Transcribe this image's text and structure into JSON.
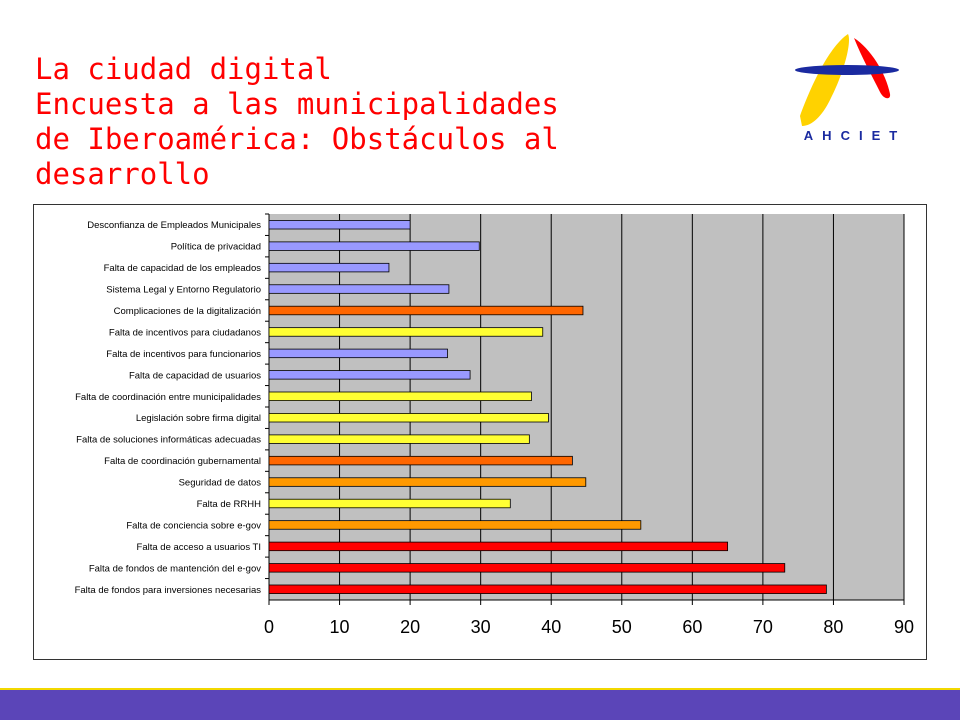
{
  "slide": {
    "title_lines": [
      "La ciudad digital",
      "Encuesta a las municipalidades",
      "de Iberoamérica: Obstáculos al",
      "desarrollo"
    ],
    "logo_text": "AHCIET"
  },
  "colors": {
    "plot_bg": "#c0c0c0",
    "title": "#ff0000",
    "bottom_bar": "#5b45b8",
    "bottom_bar_accent": "#f2d800"
  },
  "chart_data": {
    "type": "bar",
    "orientation": "horizontal",
    "xlim": [
      0,
      90
    ],
    "xticks": [
      "0",
      "10",
      "20",
      "30",
      "40",
      "50",
      "60",
      "70",
      "80",
      "90"
    ],
    "xtick_step": 10,
    "grid": "vertical",
    "categories": [
      "Desconfianza de Empleados Municipales",
      "Política de privacidad",
      "Falta de capacidad de los empleados",
      "Sistema Legal y Entorno Regulatorio",
      "Complicaciones de la digitalización",
      "Falta de incentivos para ciudadanos",
      "Falta de incentivos para funcionarios",
      "Falta de capacidad de usuarios",
      "Falta de coordinación entre municipalidades",
      "Legislación sobre firma digital",
      "Falta de soluciones informáticas adecuadas",
      "Falta de coordinación gubernamental",
      "Seguridad de datos",
      "Falta de RRHH",
      "Falta de conciencia sobre e-gov",
      "Falta de acceso a usuarios TI",
      "Falta de fondos de mantención del e-gov",
      "Falta de fondos para inversiones necesarias"
    ],
    "values": [
      20,
      29.8,
      17,
      25.5,
      44.5,
      38.8,
      25.3,
      28.5,
      37.2,
      39.6,
      36.9,
      43,
      44.9,
      34.2,
      52.7,
      65,
      73.1,
      79
    ],
    "bar_colors": [
      "#9999ff",
      "#9999ff",
      "#9999ff",
      "#9999ff",
      "#ff6600",
      "#ffff33",
      "#9999ff",
      "#9999ff",
      "#ffff33",
      "#ffff33",
      "#ffff33",
      "#ff6600",
      "#ff9900",
      "#ffff33",
      "#ff9900",
      "#ff0000",
      "#ff0000",
      "#ff0000"
    ]
  }
}
